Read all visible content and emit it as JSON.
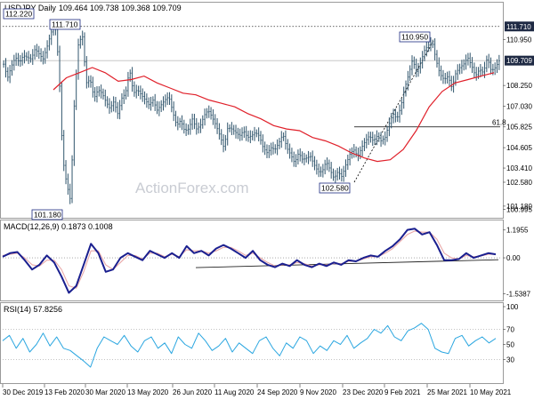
{
  "chart_data": [
    {
      "type": "candlestick",
      "title": "USDJPY Daily",
      "ohlc_readout": "109.464 109.738 109.368 109.709",
      "ylim": [
        100.6,
        113.0
      ],
      "y_ticks": [
        "111.710",
        "110.950",
        "109.709",
        "108.250",
        "107.030",
        "105.825",
        "104.605",
        "103.410",
        "102.580",
        "101.180",
        "100.995"
      ],
      "x_dates": [
        "30 Dec 2019",
        "13 Feb 2020",
        "30 Mar 2020",
        "13 May 2020",
        "26 Jun 2020",
        "11 Aug 2020",
        "24 Sep 2020",
        "9 Nov 2020",
        "23 Dec 2020",
        "9 Feb 2021",
        "25 Mar 2021",
        "10 May 2021"
      ],
      "close_series": [
        109.5,
        108.7,
        109.4,
        109.9,
        109.6,
        110.0,
        109.9,
        109.8,
        110.4,
        110.1,
        109.8,
        110.5,
        111.3,
        112.0,
        109.5,
        104.0,
        102.5,
        101.5,
        107.5,
        110.7,
        111.2,
        108.4,
        108.6,
        107.5,
        108.0,
        107.8,
        107.3,
        106.9,
        107.3,
        106.6,
        107.5,
        107.8,
        109.2,
        107.8,
        108.0,
        107.7,
        107.4,
        107.1,
        107.4,
        106.8,
        107.1,
        107.4,
        107.6,
        106.7,
        105.9,
        106.2,
        105.6,
        105.7,
        106.3,
        105.7,
        105.9,
        106.5,
        106.8,
        106.4,
        105.9,
        105.3,
        104.6,
        105.8,
        105.7,
        105.5,
        105.3,
        105.6,
        105.2,
        105.3,
        105.5,
        105.3,
        104.6,
        104.3,
        104.6,
        104.5,
        104.9,
        105.4,
        104.6,
        104.2,
        103.7,
        104.3,
        103.9,
        104.0,
        104.1,
        103.6,
        103.2,
        103.2,
        103.8,
        103.3,
        102.8,
        103.2,
        102.9,
        103.6,
        104.2,
        104.5,
        104.1,
        104.6,
        105.0,
        105.3,
        105.0,
        105.3,
        105.0,
        105.2,
        106.0,
        106.6,
        106.3,
        107.0,
        108.1,
        108.9,
        109.8,
        109.0,
        109.6,
        110.3,
        110.6,
        110.8,
        109.7,
        108.9,
        108.6,
        108.8,
        108.1,
        109.0,
        109.3,
        109.5,
        109.9,
        109.4,
        108.8,
        109.2,
        109.0,
        109.9,
        109.1,
        109.3,
        109.7
      ],
      "moving_average": [
        108.0,
        108.7,
        109.0,
        109.3,
        109.0,
        108.5,
        108.6,
        108.8,
        108.4,
        108.1,
        107.8,
        107.7,
        107.4,
        107.2,
        107.0,
        106.6,
        106.3,
        105.9,
        105.7,
        105.6,
        105.2,
        105.0,
        104.7,
        104.3,
        104.0,
        103.8,
        103.9,
        104.5,
        105.6,
        107.0,
        107.9,
        108.4,
        108.6,
        108.8,
        109.0
      ],
      "annotations": [
        {
          "label": "112.220",
          "value": 112.22
        },
        {
          "label": "111.710",
          "value": 111.71
        },
        {
          "label": "101.180",
          "value": 101.18
        },
        {
          "label": "110.950",
          "value": 110.95
        },
        {
          "label": "102.580",
          "value": 102.58
        },
        {
          "label": "61.8",
          "value": 105.825
        }
      ],
      "last_price": 109.709,
      "resistance": 111.71
    },
    {
      "type": "line",
      "title": "MACD(12,26,9) 0.1873 0.1008",
      "ylim": [
        -1.75,
        1.45
      ],
      "y_ticks": [
        "1.1955",
        "0.00",
        "-1.5387"
      ],
      "series": [
        {
          "name": "MACD",
          "values": [
            0.05,
            0.2,
            0.25,
            -0.1,
            -0.5,
            -0.3,
            0.1,
            -0.2,
            -0.8,
            -1.5,
            -1.2,
            -0.3,
            0.6,
            0.2,
            -0.6,
            -0.5,
            0.0,
            0.2,
            0.05,
            -0.1,
            0.3,
            0.15,
            0.0,
            0.2,
            0.0,
            0.5,
            0.2,
            0.3,
            0.1,
            0.4,
            0.55,
            0.4,
            0.2,
            0.0,
            0.3,
            -0.1,
            -0.3,
            -0.4,
            -0.25,
            -0.35,
            -0.1,
            -0.3,
            -0.4,
            -0.25,
            -0.35,
            -0.2,
            -0.3,
            -0.1,
            -0.15,
            0.0,
            0.1,
            0.05,
            0.3,
            0.5,
            0.8,
            1.2,
            1.25,
            1.0,
            1.1,
            0.55,
            -0.1,
            -0.1,
            -0.05,
            0.2,
            0.0,
            0.1,
            0.2,
            0.15
          ]
        },
        {
          "name": "Signal",
          "values": [
            0.1,
            0.15,
            0.2,
            0.0,
            -0.3,
            -0.35,
            -0.1,
            -0.1,
            -0.5,
            -1.2,
            -1.3,
            -0.6,
            0.3,
            0.3,
            -0.3,
            -0.5,
            -0.2,
            0.1,
            0.1,
            -0.05,
            0.2,
            0.2,
            0.05,
            0.15,
            0.05,
            0.35,
            0.3,
            0.3,
            0.2,
            0.3,
            0.45,
            0.45,
            0.3,
            0.1,
            0.2,
            0.0,
            -0.2,
            -0.35,
            -0.3,
            -0.3,
            -0.2,
            -0.25,
            -0.35,
            -0.3,
            -0.3,
            -0.25,
            -0.25,
            -0.15,
            -0.15,
            -0.05,
            0.05,
            0.05,
            0.2,
            0.4,
            0.7,
            1.0,
            1.15,
            1.1,
            1.1,
            0.8,
            0.2,
            0.0,
            -0.05,
            0.1,
            0.05,
            0.08,
            0.15,
            0.15
          ]
        }
      ]
    },
    {
      "type": "line",
      "title": "RSI(14) 57.8256",
      "ylim": [
        0,
        100
      ],
      "y_ticks": [
        "100",
        "70",
        "50",
        "30"
      ],
      "series": [
        {
          "name": "RSI",
          "values": [
            55,
            62,
            45,
            58,
            40,
            50,
            65,
            48,
            60,
            45,
            42,
            35,
            28,
            20,
            45,
            60,
            55,
            50,
            62,
            48,
            40,
            55,
            60,
            45,
            52,
            38,
            60,
            50,
            45,
            65,
            55,
            42,
            48,
            58,
            40,
            52,
            45,
            38,
            55,
            60,
            45,
            35,
            52,
            45,
            60,
            55,
            38,
            48,
            42,
            55,
            50,
            62,
            45,
            52,
            58,
            70,
            65,
            75,
            60,
            55,
            68,
            72,
            78,
            70,
            45,
            40,
            38,
            58,
            62,
            48,
            55,
            60,
            52,
            58
          ]
        }
      ]
    }
  ],
  "watermark": "ActionForex.com"
}
